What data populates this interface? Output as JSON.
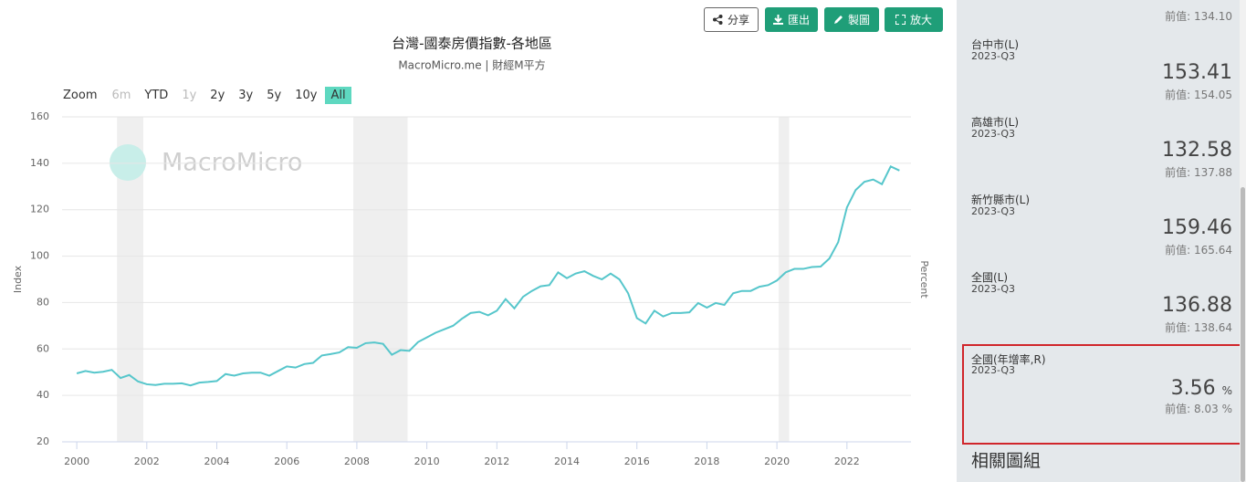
{
  "toolbar": {
    "buttons": [
      "分享",
      "匯出",
      "製圖",
      "放大"
    ]
  },
  "zoom": {
    "label": "Zoom",
    "options": [
      {
        "label": "6m",
        "enabled": false
      },
      {
        "label": "YTD",
        "enabled": true
      },
      {
        "label": "1y",
        "enabled": false
      },
      {
        "label": "2y",
        "enabled": true
      },
      {
        "label": "3y",
        "enabled": true
      },
      {
        "label": "5y",
        "enabled": true
      },
      {
        "label": "10y",
        "enabled": true
      },
      {
        "label": "All",
        "enabled": true,
        "selected": true
      }
    ]
  },
  "chart_data": {
    "type": "line",
    "title": "台灣-國泰房價指數-各地區",
    "subtitle": "MacroMicro.me | 財經M平方",
    "watermark": "MacroMicro",
    "y_label": "Index",
    "y2_label": "Percent",
    "xlim": [
      1999.58,
      2023.83
    ],
    "ylim": [
      20,
      160
    ],
    "xticks": [
      2000,
      2002,
      2004,
      2006,
      2008,
      2010,
      2012,
      2014,
      2016,
      2018,
      2020,
      2022
    ],
    "yticks": [
      20,
      40,
      60,
      80,
      100,
      120,
      140,
      160
    ],
    "grid": true,
    "bands": [
      [
        2001.15,
        2001.9
      ],
      [
        2007.9,
        2009.45
      ],
      [
        2020.05,
        2020.35
      ]
    ],
    "x": [
      2000,
      2000.25,
      2000.5,
      2000.75,
      2001,
      2001.25,
      2001.5,
      2001.75,
      2002,
      2002.25,
      2002.5,
      2002.75,
      2003,
      2003.25,
      2003.5,
      2003.75,
      2004,
      2004.25,
      2004.5,
      2004.75,
      2005,
      2005.25,
      2005.5,
      2005.75,
      2006,
      2006.25,
      2006.5,
      2006.75,
      2007,
      2007.25,
      2007.5,
      2007.75,
      2008,
      2008.25,
      2008.5,
      2008.75,
      2009,
      2009.25,
      2009.5,
      2009.75,
      2010,
      2010.25,
      2010.5,
      2010.75,
      2011,
      2011.25,
      2011.5,
      2011.75,
      2012,
      2012.25,
      2012.5,
      2012.75,
      2013,
      2013.25,
      2013.5,
      2013.75,
      2014,
      2014.25,
      2014.5,
      2014.75,
      2015,
      2015.25,
      2015.5,
      2015.75,
      2016,
      2016.25,
      2016.5,
      2016.75,
      2017,
      2017.25,
      2017.5,
      2017.75,
      2018,
      2018.25,
      2018.5,
      2018.75,
      2019,
      2019.25,
      2019.5,
      2019.75,
      2020,
      2020.25,
      2020.5,
      2020.75,
      2021,
      2021.25,
      2021.5,
      2021.75,
      2022,
      2022.25,
      2022.5,
      2022.75,
      2023,
      2023.25,
      2023.5
    ],
    "series": [
      {
        "name": "全國(L)",
        "color": "#56c6cb",
        "values": [
          49.5,
          50.5,
          49.8,
          50.2,
          51,
          47.5,
          48.8,
          46,
          44.8,
          44.5,
          45,
          45,
          45.2,
          44.3,
          45.5,
          45.8,
          46.2,
          49.2,
          48.5,
          49.5,
          49.8,
          49.8,
          48.5,
          50.5,
          52.5,
          52,
          53.5,
          54,
          57.2,
          57.8,
          58.5,
          60.8,
          60.5,
          62.5,
          62.8,
          62.2,
          57.5,
          59.5,
          59.2,
          63,
          65,
          67,
          68.5,
          70,
          73,
          75.5,
          76,
          74.5,
          76.5,
          81.5,
          77.5,
          82.5,
          85,
          87,
          87.5,
          93,
          90.5,
          92.5,
          93.5,
          91.5,
          90,
          92.5,
          90,
          84,
          73.3,
          71,
          76.5,
          74,
          75.5,
          75.5,
          75.8,
          79.8,
          77.8,
          79.8,
          79,
          84,
          85,
          85,
          86.8,
          87.5,
          89.5,
          93,
          94.5,
          94.5,
          95.3,
          95.5,
          99,
          106,
          121,
          128.5,
          132,
          133,
          131,
          138.64,
          136.88
        ]
      }
    ]
  },
  "sidebar": {
    "prev_label": "前值:",
    "top_prev": "134.10",
    "items": [
      {
        "name": "台中市(L)",
        "date": "2023-Q3",
        "value": "153.41",
        "prev": "154.05"
      },
      {
        "name": "高雄市(L)",
        "date": "2023-Q3",
        "value": "132.58",
        "prev": "137.88"
      },
      {
        "name": "新竹縣市(L)",
        "date": "2023-Q3",
        "value": "159.46",
        "prev": "165.64"
      },
      {
        "name": "全國(L)",
        "date": "2023-Q3",
        "value": "136.88",
        "prev": "138.64"
      },
      {
        "name": "全國(年增率,R)",
        "date": "2023-Q3",
        "value": "3.56",
        "unit": "%",
        "prev": "8.03",
        "prev_unit": "%"
      }
    ],
    "section": "相關圖組"
  }
}
